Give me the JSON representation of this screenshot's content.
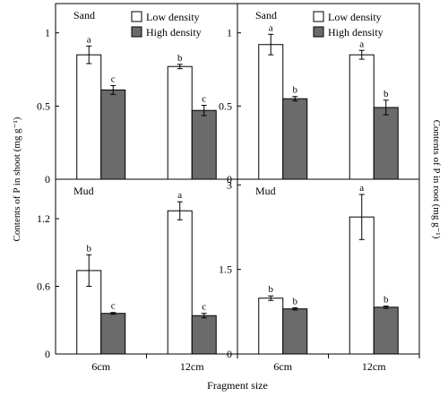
{
  "figure": {
    "ylabel_left": "Contents of P in shoot (mg g⁻¹)",
    "ylabel_right": "Contents of P in root (mg g⁻¹)",
    "xlabel": "Fragment size"
  },
  "chart_data": [
    {
      "type": "bar",
      "panel": "shoot-sand",
      "panel_label": "Sand",
      "categories": [
        "6cm",
        "12cm"
      ],
      "series": [
        {
          "name": "Low density",
          "values": [
            0.85,
            0.77
          ],
          "errors": [
            0.06,
            0.015
          ],
          "letters": [
            "a",
            "b"
          ]
        },
        {
          "name": "High density",
          "values": [
            0.61,
            0.47
          ],
          "errors": [
            0.03,
            0.035
          ],
          "letters": [
            "c",
            "c"
          ]
        }
      ],
      "ylim": [
        0,
        1.2
      ],
      "yticks": [
        0,
        0.5,
        1
      ],
      "ytick_labels": [
        "0",
        "0.5",
        "1"
      ],
      "legend": "top-right"
    },
    {
      "type": "bar",
      "panel": "root-sand",
      "panel_label": "Sand",
      "categories": [
        "6cm",
        "12cm"
      ],
      "series": [
        {
          "name": "Low density",
          "values": [
            0.92,
            0.85
          ],
          "errors": [
            0.07,
            0.03
          ],
          "letters": [
            "a",
            "a"
          ]
        },
        {
          "name": "High density",
          "values": [
            0.55,
            0.49
          ],
          "errors": [
            0.015,
            0.05
          ],
          "letters": [
            "b",
            "b"
          ]
        }
      ],
      "ylim": [
        0,
        1.2
      ],
      "yticks": [
        0,
        0.5,
        1
      ],
      "ytick_labels": [
        "0",
        "0.5",
        "1"
      ],
      "legend": "top-right"
    },
    {
      "type": "bar",
      "panel": "shoot-mud",
      "panel_label": "Mud",
      "categories": [
        "6cm",
        "12cm"
      ],
      "series": [
        {
          "name": "Low density",
          "values": [
            0.74,
            1.27
          ],
          "errors": [
            0.14,
            0.08
          ],
          "letters": [
            "b",
            "a"
          ]
        },
        {
          "name": "High density",
          "values": [
            0.36,
            0.34
          ],
          "errors": [
            0.008,
            0.02
          ],
          "letters": [
            "c",
            "c"
          ]
        }
      ],
      "ylim": [
        0,
        1.55
      ],
      "yticks": [
        0,
        0.6,
        1.2
      ],
      "ytick_labels": [
        "0",
        "0.6",
        "1.2"
      ]
    },
    {
      "type": "bar",
      "panel": "root-mud",
      "panel_label": "Mud",
      "categories": [
        "6cm",
        "12cm"
      ],
      "series": [
        {
          "name": "Low density",
          "values": [
            0.99,
            2.43
          ],
          "errors": [
            0.04,
            0.4
          ],
          "letters": [
            "b",
            "a"
          ]
        },
        {
          "name": "High density",
          "values": [
            0.8,
            0.83
          ],
          "errors": [
            0.02,
            0.02
          ],
          "letters": [
            "b",
            "b"
          ]
        }
      ],
      "ylim": [
        0,
        3.1
      ],
      "yticks": [
        0,
        1.5,
        3
      ],
      "ytick_labels": [
        "0",
        "1.5",
        "3"
      ]
    }
  ]
}
